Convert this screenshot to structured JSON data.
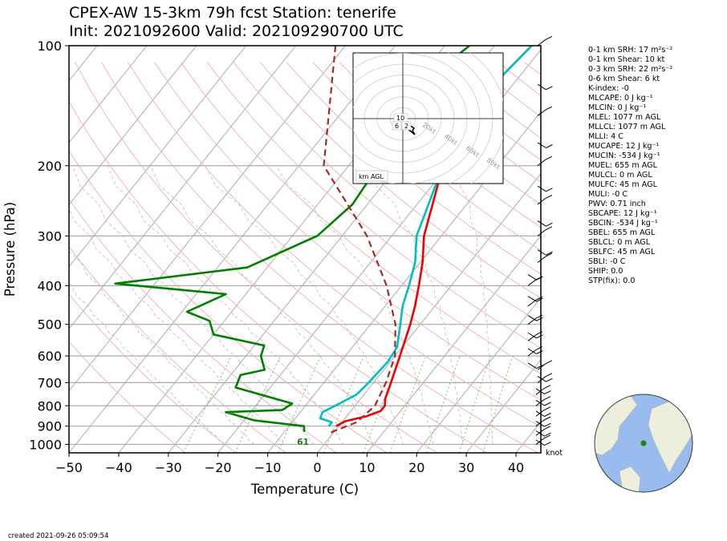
{
  "title_line1": "CPEX-AW 15-3km  79h fcst  Station: tenerife",
  "title_line2": "Init: 2021092600  Valid: 202109290700 UTC",
  "created": "created 2021-09-26 05:09:54",
  "wind_units": "knot",
  "colors": {
    "temperature": "#ee0000",
    "dewpoint": "#008000",
    "virtual": "#00bfc4",
    "parcel": "#a52a2a",
    "isobar": "#aaaaaa",
    "dry_adiabat": "#f4aaaa",
    "mixing_ratio": "#66bb66"
  },
  "hodograph": {
    "label": "km AGL",
    "ring_labels": [
      "20kt",
      "40kt",
      "60kt",
      "80kt"
    ],
    "height_labels": [
      "10",
      "6",
      "2"
    ]
  },
  "stats": [
    "0-1 km SRH: 17 m²s⁻²",
    "0-1 km Shear: 10 kt",
    "0-3 km SRH: 22 m²s⁻²",
    "0-6 km Shear: 6 kt",
    "K-index: -0",
    "MLCAPE: 0 J kg⁻¹",
    "MLCIN: 0 J kg⁻¹",
    "MLEL: 1077 m AGL",
    "MLLCL: 1077 m AGL",
    "MLLI: 4 C",
    "MUCAPE: 12 J kg⁻¹",
    "MUCIN: -534 J kg⁻¹",
    "MUEL: 655 m AGL",
    "MULCL: 0 m AGL",
    "MULFC: 45 m AGL",
    "MULI: -0 C",
    "PWV: 0.71 inch",
    "SBCAPE: 12 J kg⁻¹",
    "SBCIN: -534 J kg⁻¹",
    "SBEL: 655 m AGL",
    "SBLCL: 0 m AGL",
    "SBLFC: 45 m AGL",
    "SBLI: -0 C",
    "SHIP: 0.0",
    "STP(fix): 0.0"
  ],
  "chart_data": {
    "type": "line",
    "chart_kind": "skew-T log-p",
    "xlabel": "Temperature (C)",
    "ylabel": "Pressure (hPa)",
    "xlim": [
      -50,
      45
    ],
    "ylim": [
      1050,
      100
    ],
    "y_scale": "log",
    "x_ticks": [
      -50,
      -40,
      -30,
      -20,
      -10,
      0,
      10,
      20,
      30,
      40
    ],
    "y_ticks": [
      100,
      200,
      300,
      400,
      500,
      600,
      700,
      800,
      900,
      1000
    ],
    "surface_label": "61",
    "series": [
      {
        "key": "temperature",
        "points": [
          [
            -22.5,
            100
          ],
          [
            -25,
            150
          ],
          [
            -21,
            200
          ],
          [
            -13.5,
            300
          ],
          [
            -9.5,
            350
          ],
          [
            -6.5,
            400
          ],
          [
            -4,
            450
          ],
          [
            -2,
            500
          ],
          [
            1,
            600
          ],
          [
            3.5,
            700
          ],
          [
            5,
            770
          ],
          [
            6,
            800
          ],
          [
            6,
            825
          ],
          [
            4,
            850
          ],
          [
            0.5,
            875
          ],
          [
            -0.5,
            900
          ]
        ]
      },
      {
        "key": "virtual",
        "points": [
          [
            -22.5,
            100
          ],
          [
            -25,
            150
          ],
          [
            -21,
            200
          ],
          [
            -15,
            300
          ],
          [
            -11,
            350
          ],
          [
            -8.5,
            400
          ],
          [
            -6.5,
            450
          ],
          [
            -4,
            500
          ],
          [
            -1,
            570
          ],
          [
            -0.5,
            620
          ],
          [
            -1,
            700
          ],
          [
            -1.5,
            750
          ],
          [
            -3.5,
            790
          ],
          [
            -4.5,
            810
          ],
          [
            -5.5,
            830
          ],
          [
            -5,
            860
          ],
          [
            -2,
            880
          ],
          [
            -2,
            900
          ]
        ]
      },
      {
        "key": "dewpoint",
        "points": [
          [
            -35,
            100
          ],
          [
            -38,
            120
          ],
          [
            -37,
            150
          ],
          [
            -34,
            180
          ],
          [
            -34,
            200
          ],
          [
            -33,
            250
          ],
          [
            -35,
            300
          ],
          [
            -44,
            360
          ],
          [
            -68,
            395
          ],
          [
            -44,
            420
          ],
          [
            -49,
            465
          ],
          [
            -43,
            490
          ],
          [
            -40,
            530
          ],
          [
            -28,
            565
          ],
          [
            -27,
            600
          ],
          [
            -24,
            650
          ],
          [
            -28,
            670
          ],
          [
            -27,
            720
          ],
          [
            -13,
            790
          ],
          [
            -14,
            820
          ],
          [
            -25,
            830
          ],
          [
            -18,
            870
          ],
          [
            -7,
            900
          ],
          [
            -6,
            930
          ]
        ]
      },
      {
        "key": "parcel",
        "dashed": true,
        "points": [
          [
            -62,
            100
          ],
          [
            -45,
            200
          ],
          [
            -25,
            300
          ],
          [
            -13,
            400
          ],
          [
            -5,
            500
          ],
          [
            0,
            600
          ],
          [
            2.5,
            700
          ],
          [
            4,
            800
          ],
          [
            3,
            880
          ],
          [
            -1,
            940
          ]
        ]
      }
    ]
  }
}
